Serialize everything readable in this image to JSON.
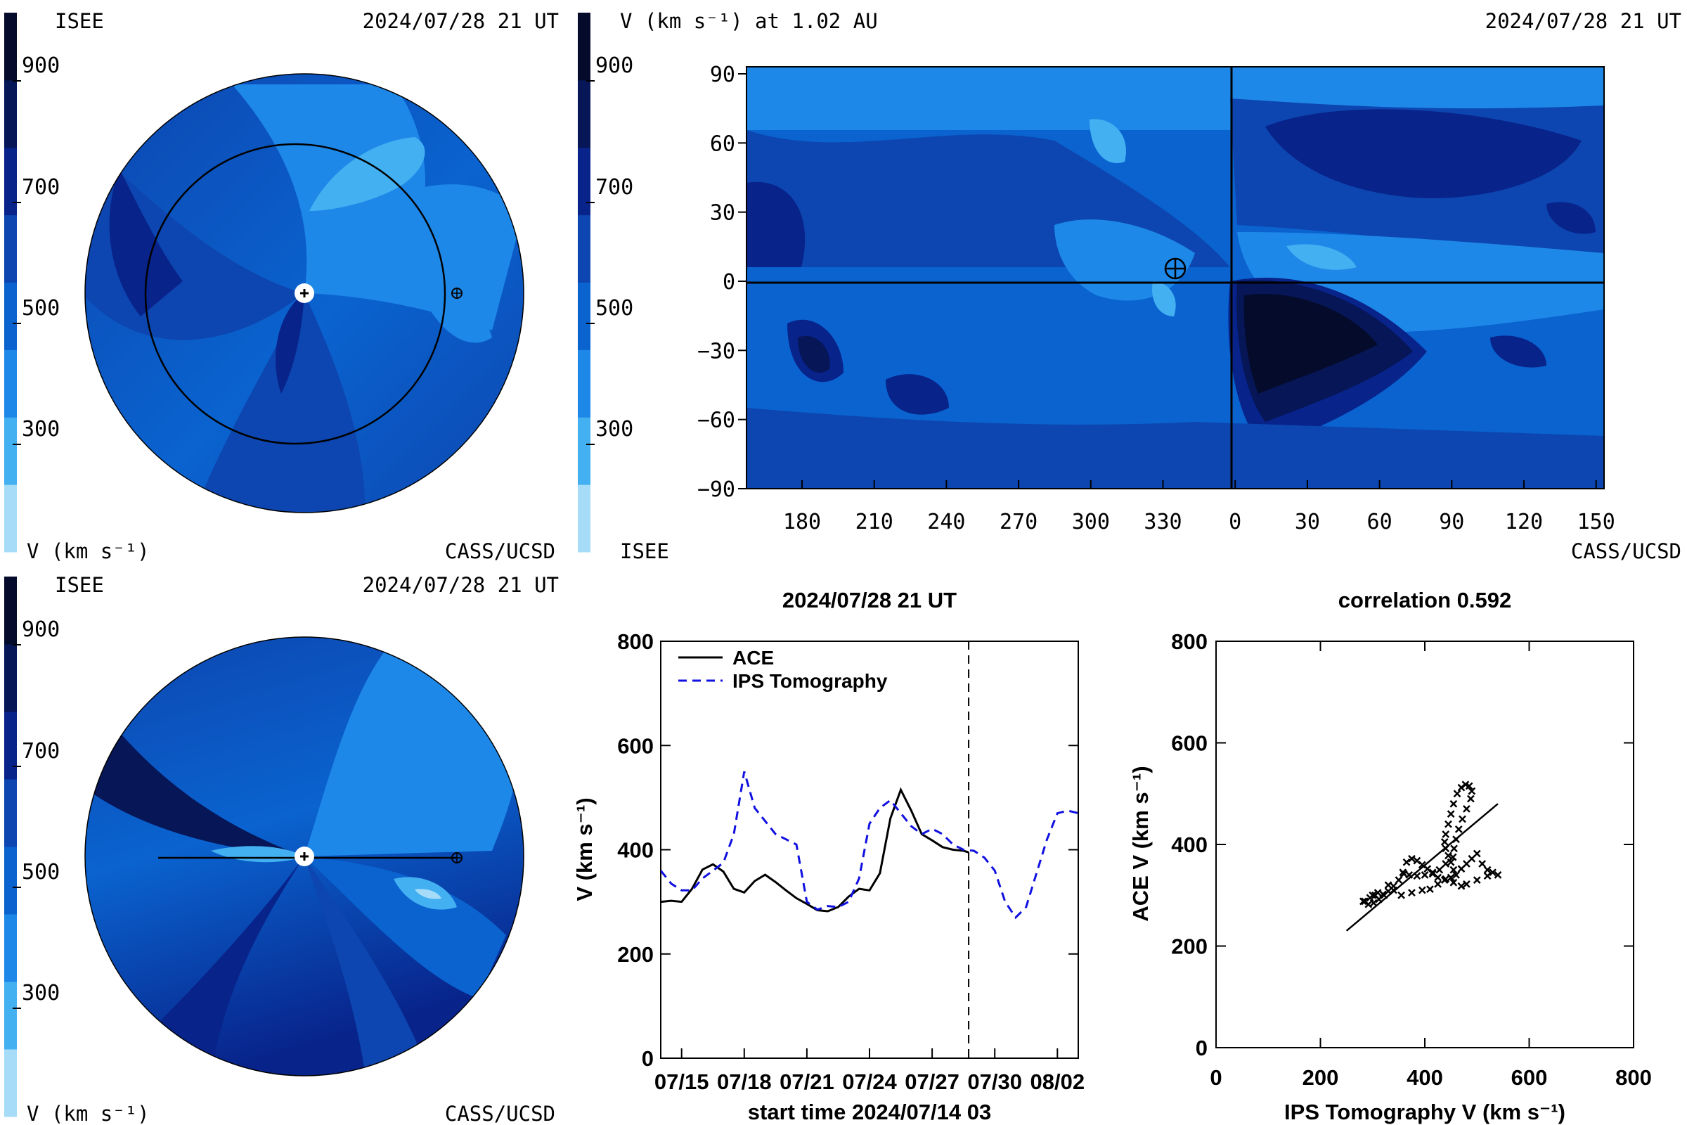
{
  "colors": {
    "scale": [
      "#a6dcf8",
      "#43b0f2",
      "#1e88e8",
      "#0a63cf",
      "#0d46b0",
      "#08238a",
      "#061657",
      "#050b2a"
    ],
    "ace": "#000000",
    "ips": "#1010e0"
  },
  "colorbar": {
    "ticks": [
      "900",
      "700",
      "500",
      "300"
    ]
  },
  "panel_ecliptic": {
    "title_left": "ISEE",
    "title_right": "2024/07/28 21 UT",
    "bottom_left": "V (km s⁻¹)",
    "bottom_right": "CASS/UCSD"
  },
  "panel_meridional": {
    "title_left": "ISEE",
    "title_right": "2024/07/28 21 UT",
    "bottom_left": "V (km s⁻¹)",
    "bottom_right": "CASS/UCSD"
  },
  "panel_map": {
    "title_left": "V (km s⁻¹) at 1.02 AU",
    "title_right": "2024/07/28 21 UT",
    "bottom_left": "ISEE",
    "bottom_right": "CASS/UCSD"
  },
  "chart_data": [
    {
      "type": "heatmap",
      "name": "synoptic velocity map",
      "title": "V (km s⁻¹) at 1.02 AU",
      "x_ticks": [
        "180",
        "210",
        "240",
        "270",
        "300",
        "330",
        "0",
        "30",
        "60",
        "90",
        "120",
        "150"
      ],
      "y_ticks": [
        "90",
        "60",
        "30",
        "0",
        "−30",
        "−60",
        "−90"
      ],
      "ylim": [
        -90,
        90
      ],
      "earth_marker": {
        "x_label": "~322",
        "y": 5
      },
      "colorbar_ticks": [
        900,
        700,
        500,
        300
      ]
    },
    {
      "type": "line",
      "title": "2024/07/28 21 UT",
      "xlabel": "start time 2024/07/14 03",
      "ylabel": "V (km s⁻¹)",
      "ylim": [
        0,
        800
      ],
      "y_ticks": [
        "0",
        "200",
        "400",
        "600",
        "800"
      ],
      "x_ticks": [
        "07/15",
        "07/18",
        "07/21",
        "07/24",
        "07/27",
        "07/30",
        "08/02"
      ],
      "xlim_days": [
        0,
        20
      ],
      "vline_day": 14.75,
      "legend": [
        "ACE",
        "IPS Tomography"
      ],
      "series": [
        {
          "name": "ACE",
          "x": [
            0,
            0.5,
            1,
            1.5,
            2,
            2.5,
            3,
            3.5,
            4,
            4.5,
            5,
            5.5,
            6,
            6.5,
            7,
            7.5,
            8,
            8.5,
            9,
            9.5,
            10,
            10.5,
            11,
            11.5,
            12,
            12.5,
            13,
            13.5,
            14,
            14.5,
            14.75
          ],
          "y": [
            300,
            302,
            300,
            325,
            362,
            372,
            358,
            325,
            318,
            340,
            352,
            338,
            322,
            307,
            296,
            284,
            282,
            290,
            310,
            325,
            322,
            355,
            460,
            515,
            475,
            430,
            418,
            405,
            400,
            398,
            395
          ]
        },
        {
          "name": "IPS Tomography",
          "x": [
            0,
            0.5,
            1,
            1.5,
            2,
            2.5,
            3,
            3.5,
            4,
            4.5,
            5,
            5.5,
            6,
            6.5,
            7,
            7.5,
            8,
            8.5,
            9,
            9.5,
            10,
            10.5,
            11,
            11.5,
            12,
            12.5,
            13,
            13.5,
            14,
            14.5,
            15,
            15.5,
            16,
            16.5,
            17,
            17.5,
            18,
            18.5,
            19,
            19.5,
            20
          ],
          "y": [
            360,
            335,
            322,
            322,
            345,
            360,
            375,
            430,
            550,
            480,
            455,
            430,
            420,
            410,
            300,
            285,
            292,
            290,
            300,
            345,
            450,
            480,
            495,
            470,
            445,
            430,
            440,
            430,
            410,
            400,
            398,
            385,
            360,
            300,
            270,
            290,
            355,
            420,
            470,
            475,
            470
          ]
        }
      ]
    },
    {
      "type": "scatter",
      "title": "correlation 0.592",
      "xlabel": "IPS Tomography V (km s⁻¹)",
      "ylabel": "ACE V (km s⁻¹)",
      "xlim": [
        0,
        800
      ],
      "ylim": [
        0,
        800
      ],
      "x_ticks": [
        "0",
        "200",
        "400",
        "600",
        "800"
      ],
      "y_ticks": [
        "0",
        "200",
        "400",
        "600",
        "800"
      ],
      "fit_line": {
        "x": [
          250,
          540
        ],
        "y": [
          230,
          480
        ]
      },
      "points": [
        [
          285,
          288
        ],
        [
          295,
          295
        ],
        [
          300,
          300
        ],
        [
          305,
          300
        ],
        [
          310,
          305
        ],
        [
          320,
          302
        ],
        [
          330,
          308
        ],
        [
          340,
          318
        ],
        [
          350,
          330
        ],
        [
          358,
          345
        ],
        [
          365,
          365
        ],
        [
          375,
          372
        ],
        [
          385,
          368
        ],
        [
          395,
          360
        ],
        [
          405,
          352
        ],
        [
          415,
          342
        ],
        [
          425,
          335
        ],
        [
          438,
          330
        ],
        [
          450,
          335
        ],
        [
          460,
          340
        ],
        [
          470,
          352
        ],
        [
          480,
          362
        ],
        [
          490,
          372
        ],
        [
          500,
          382
        ],
        [
          510,
          362
        ],
        [
          520,
          350
        ],
        [
          530,
          345
        ],
        [
          540,
          340
        ],
        [
          520,
          338
        ],
        [
          500,
          330
        ],
        [
          480,
          322
        ],
        [
          470,
          318
        ],
        [
          455,
          325
        ],
        [
          440,
          332
        ],
        [
          425,
          322
        ],
        [
          410,
          312
        ],
        [
          395,
          310
        ],
        [
          375,
          305
        ],
        [
          355,
          300
        ],
        [
          340,
          310
        ],
        [
          330,
          320
        ],
        [
          322,
          300
        ],
        [
          312,
          292
        ],
        [
          302,
          285
        ],
        [
          292,
          282
        ],
        [
          282,
          288
        ],
        [
          455,
          350
        ],
        [
          450,
          365
        ],
        [
          445,
          378
        ],
        [
          440,
          392
        ],
        [
          438,
          405
        ],
        [
          440,
          420
        ],
        [
          445,
          440
        ],
        [
          450,
          460
        ],
        [
          455,
          480
        ],
        [
          462,
          500
        ],
        [
          470,
          512
        ],
        [
          478,
          518
        ],
        [
          485,
          515
        ],
        [
          490,
          505
        ],
        [
          488,
          490
        ],
        [
          480,
          470
        ],
        [
          472,
          450
        ],
        [
          465,
          430
        ],
        [
          460,
          410
        ],
        [
          456,
          392
        ],
        [
          454,
          375
        ],
        [
          440,
          362
        ],
        [
          428,
          350
        ],
        [
          415,
          345
        ],
        [
          400,
          340
        ],
        [
          385,
          338
        ],
        [
          370,
          340
        ],
        [
          360,
          342
        ]
      ]
    }
  ]
}
